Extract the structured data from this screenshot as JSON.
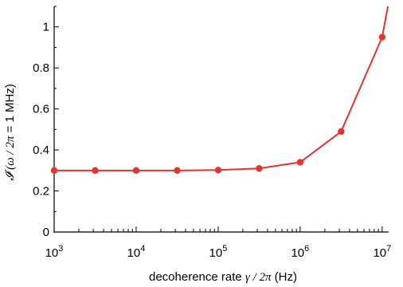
{
  "chart_data": {
    "type": "line",
    "x_scale": "log",
    "xlim": [
      1000,
      12000000
    ],
    "ylim": [
      0,
      1.1
    ],
    "grid": false,
    "xlabel": {
      "prefix": "decoherence rate ",
      "symbol": "γ / 2π",
      "suffix": " (Hz)"
    },
    "ylabel": {
      "symbol": "𝓘 (ω / 2π",
      "suffix": " = 1 MHz)"
    },
    "x_ticks": [
      {
        "value": 1000,
        "base": "10",
        "exp": "3"
      },
      {
        "value": 10000,
        "base": "10",
        "exp": "4"
      },
      {
        "value": 100000,
        "base": "10",
        "exp": "5"
      },
      {
        "value": 1000000,
        "base": "10",
        "exp": "6"
      },
      {
        "value": 10000000,
        "base": "10",
        "exp": "7"
      }
    ],
    "y_ticks": [
      {
        "value": 0,
        "label": "0"
      },
      {
        "value": 0.2,
        "label": "0.2"
      },
      {
        "value": 0.4,
        "label": "0.4"
      },
      {
        "value": 0.6,
        "label": "0.6"
      },
      {
        "value": 0.8,
        "label": "0.8"
      },
      {
        "value": 1,
        "label": "1"
      }
    ],
    "series": [
      {
        "color": "#e3342f",
        "points": [
          {
            "x": 1000,
            "y": 0.3
          },
          {
            "x": 3162,
            "y": 0.3
          },
          {
            "x": 10000,
            "y": 0.3
          },
          {
            "x": 31623,
            "y": 0.3
          },
          {
            "x": 100000,
            "y": 0.302
          },
          {
            "x": 316228,
            "y": 0.31
          },
          {
            "x": 1000000,
            "y": 0.34
          },
          {
            "x": 3162278,
            "y": 0.49
          },
          {
            "x": 10000000,
            "y": 0.95
          }
        ],
        "line_extension": {
          "x": 12000000,
          "y": 1.12
        }
      }
    ]
  }
}
